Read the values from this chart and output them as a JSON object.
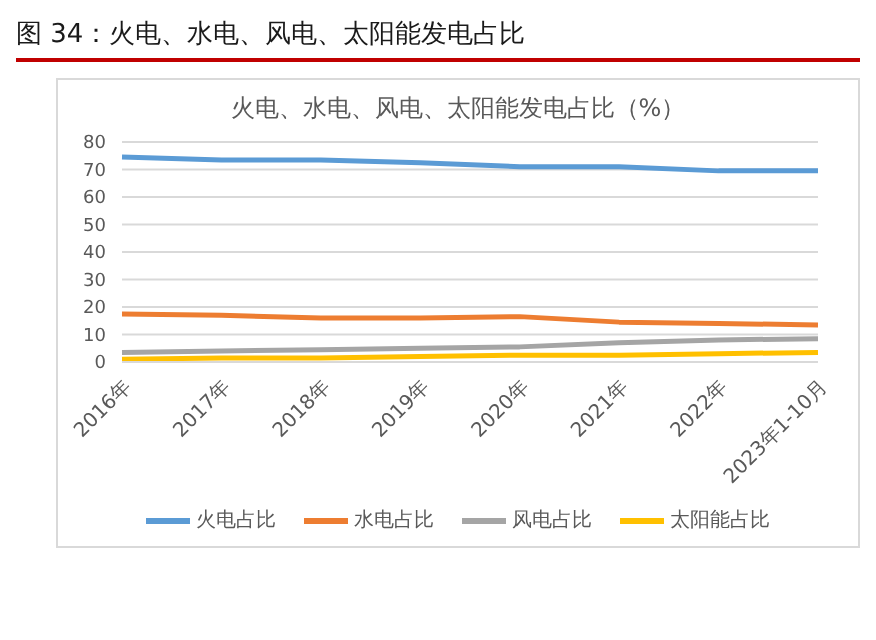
{
  "chart_data": {
    "type": "line",
    "title": "图 34：火电、水电、风电、太阳能发电占比",
    "subtitle": "火电、水电、风电、太阳能发电占比（%）",
    "categories": [
      "2016年",
      "2017年",
      "2018年",
      "2019年",
      "2020年",
      "2021年",
      "2022年",
      "2023年1-10月"
    ],
    "series": [
      {
        "name": "火电占比",
        "color": "#5b9bd5",
        "values": [
          74.5,
          73.5,
          73.5,
          72.5,
          71,
          71,
          69.5,
          69.5
        ]
      },
      {
        "name": "水电占比",
        "color": "#ed7d31",
        "values": [
          17.5,
          17,
          16,
          16,
          16.5,
          14.5,
          14,
          13.5
        ]
      },
      {
        "name": "风电占比",
        "color": "#a5a5a5",
        "values": [
          3.5,
          4,
          4.5,
          5,
          5.5,
          7,
          8,
          8.5
        ]
      },
      {
        "name": "太阳能占比",
        "color": "#ffc000",
        "values": [
          1,
          1.5,
          1.5,
          2,
          2.5,
          2.5,
          3,
          3.5
        ]
      }
    ],
    "ylim": [
      0,
      80
    ],
    "yticks": [
      0,
      10,
      20,
      30,
      40,
      50,
      60,
      70,
      80
    ],
    "grid": "y",
    "legend": "bottom",
    "marker": "none",
    "line_style": "solid"
  }
}
